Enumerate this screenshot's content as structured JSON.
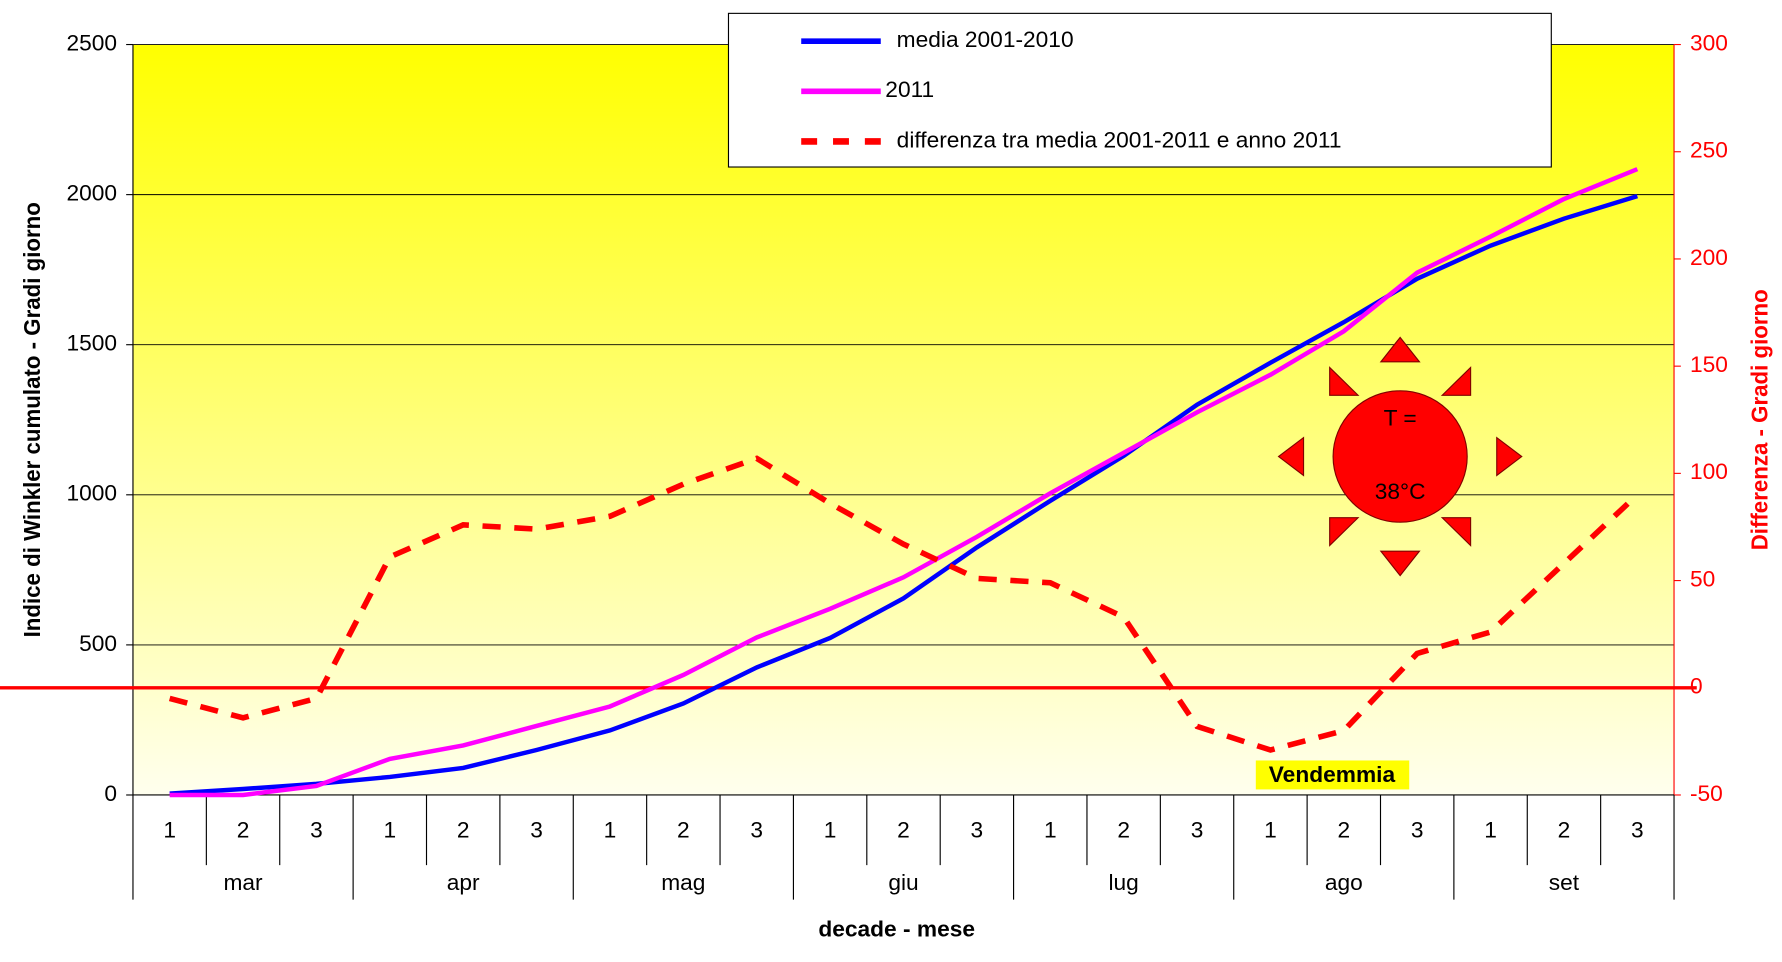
{
  "chart_data": {
    "type": "line",
    "categories": [
      "1",
      "2",
      "3",
      "1",
      "2",
      "3",
      "1",
      "2",
      "3",
      "1",
      "2",
      "3",
      "1",
      "2",
      "3",
      "1",
      "2",
      "3",
      "1",
      "2",
      "3"
    ],
    "groups": [
      "mar",
      "apr",
      "mag",
      "giu",
      "lug",
      "ago",
      "set"
    ],
    "xlabel": "decade - mese",
    "ylabel": "Indice di Winkler cumulato - Gradi giorno",
    "y2label": "Differenza - Gradi giorno",
    "ylim": [
      0,
      2500
    ],
    "yticks": [
      0,
      500,
      1000,
      1500,
      2000,
      2500
    ],
    "y2lim": [
      -50,
      300
    ],
    "y2ticks": [
      -50,
      0,
      50,
      100,
      150,
      200,
      250,
      300
    ],
    "grid": true,
    "series": [
      {
        "name": "media 2001-2010",
        "color": "#0000ff",
        "values": [
          5,
          20,
          37,
          60,
          90,
          150,
          215,
          305,
          425,
          523,
          655,
          825,
          980,
          1130,
          1300,
          1440,
          1575,
          1720,
          1830,
          1920,
          1995
        ]
      },
      {
        "name": "2011",
        "color": "#ff00ff",
        "values": [
          0,
          0,
          30,
          120,
          165,
          230,
          295,
          400,
          525,
          620,
          725,
          860,
          1005,
          1140,
          1275,
          1400,
          1545,
          1740,
          1860,
          1985,
          2085
        ]
      },
      {
        "name": "differenza tra media 2001-2011 e anno 2011",
        "color": "#ff0000",
        "dashed": true,
        "axis": "y2",
        "values": [
          -5,
          -14,
          -5,
          61,
          76,
          74,
          80,
          95,
          107,
          86,
          67,
          51,
          49,
          33,
          -18,
          -29,
          -20,
          16,
          26,
          58,
          90
        ]
      }
    ],
    "reference_line": {
      "value": 0,
      "axis": "y2",
      "color": "#ff0000"
    },
    "annotations": [
      "T =",
      "38°C",
      "Vendemmia"
    ]
  }
}
